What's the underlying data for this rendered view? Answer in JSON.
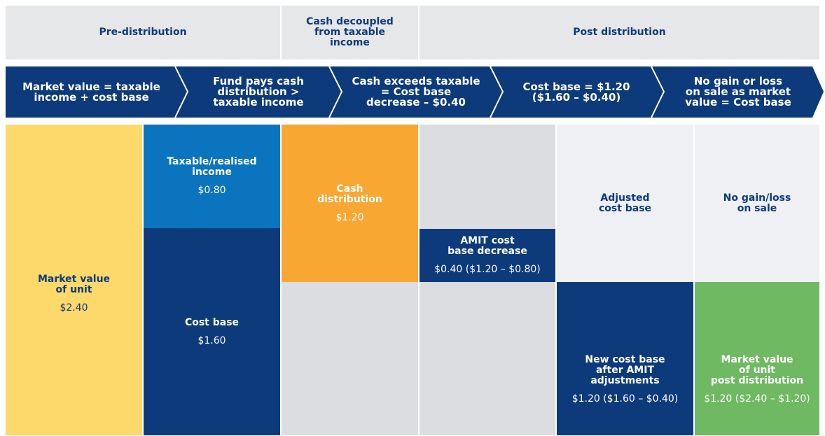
{
  "header": {
    "cells": [
      {
        "lines": [
          "Pre-distribution"
        ]
      },
      {
        "lines": [
          "Cash decoupled",
          "from taxable",
          "income"
        ]
      },
      {
        "lines": [
          "Post distribution"
        ]
      }
    ]
  },
  "steps": [
    {
      "lines": [
        "Market value = taxable",
        "income + cost base"
      ]
    },
    {
      "lines": [
        "Fund pays cash",
        "distribution >",
        "taxable income"
      ]
    },
    {
      "lines": [
        "Cash exceeds taxable",
        "= Cost base",
        "decrease – $0.40"
      ]
    },
    {
      "lines": [
        "Cost base = $1.20",
        "($1.60 – $0.40)"
      ]
    },
    {
      "lines": [
        "No gain or loss",
        "on sale as market",
        "value = Cost base"
      ]
    }
  ],
  "blocks": [
    {
      "lines": [
        "Market value",
        "of unit"
      ],
      "value": "$2.40"
    },
    {
      "lines": [
        "Taxable/realised",
        "income"
      ],
      "value": "$0.80"
    },
    {
      "lines": [
        "Cost base"
      ],
      "value": "$1.60"
    },
    {
      "lines": [
        "Cash",
        "distribution"
      ],
      "value": "$1.20"
    },
    {
      "lines": [
        "AMIT cost",
        "base decrease"
      ],
      "value": "$0.40 ($1.20 – $0.80)"
    },
    {
      "lines": [
        "Adjusted",
        "cost base"
      ]
    },
    {
      "lines": [
        "New cost base",
        "after AMIT",
        "adjustments"
      ],
      "value": "$1.20 ($1.60 – $0.40)"
    },
    {
      "lines": [
        "No gain/loss",
        "on sale"
      ]
    },
    {
      "lines": [
        "Market value",
        "of unit",
        "post distribution"
      ],
      "value": "$1.20 ($2.40 – $1.20)"
    }
  ]
}
